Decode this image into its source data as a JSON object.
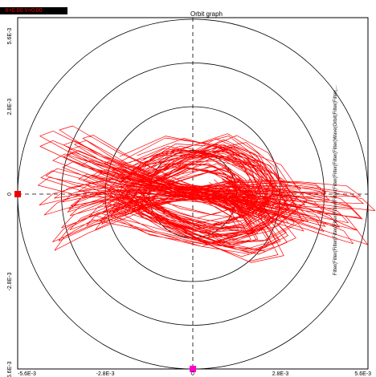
{
  "readout": "X=0.00  Y=0.00",
  "side_label": "Filter(Filter(Filter(Filter(Filter(Filter(Filter(Filter(Filter(Filter(Filter(Wave(Orbit(Filter(Filter(...",
  "chart_data": {
    "type": "line",
    "title": "Orbit graph",
    "xlabel": "",
    "ylabel": "",
    "xlim": [
      -0.0056,
      0.0056
    ],
    "ylim": [
      -0.0056,
      0.0056
    ],
    "x_ticks": [
      "-5.6E-3",
      "-2.8E-3",
      "0",
      "2.8E-3",
      "5.6E-3"
    ],
    "y_ticks": [
      "5.6E-3",
      "2.8E-3",
      "0",
      "-2.8E-3",
      "-5.6E-3"
    ],
    "circle_radii": [
      0.0014,
      0.0028,
      0.0042,
      0.0056
    ],
    "grid": "dashed crosshair through origin",
    "series": [
      {
        "color": "#ff0000",
        "x": [
          -0.0022,
          -0.0008,
          0.0012,
          0.0026,
          0.0034,
          0.0024,
          0.0004,
          -0.0016,
          -0.0032,
          -0.0042,
          -0.0046,
          -0.0034,
          -0.0012,
          0.0014,
          0.0036,
          0.0052,
          0.0056,
          0.0042,
          0.0018,
          -0.0006,
          -0.0028,
          -0.0044,
          -0.0048,
          -0.0034,
          -0.0012,
          0.001,
          0.0024,
          0.003,
          0.002,
          0.0004,
          -0.0014,
          -0.0026,
          -0.002,
          -0.0004,
          0.0012,
          0.0022,
          0.0028,
          0.0024,
          0.0012
        ],
        "y": [
          0.0008,
          0.0016,
          0.0014,
          0.0008,
          -0.0004,
          -0.0012,
          -0.0016,
          -0.0008,
          -0.0002,
          -0.0006,
          -0.001,
          -0.0006,
          -0.0001,
          0.0002,
          0.0,
          -0.0004,
          -0.0008,
          -0.0006,
          -0.0002,
          0.0002,
          0.0008,
          0.0014,
          0.0012,
          0.0006,
          0.0002,
          -0.0002,
          -0.0008,
          -0.0016,
          -0.002,
          -0.0016,
          -0.001,
          -0.0002,
          0.0006,
          0.0012,
          0.0018,
          0.0012,
          0.0002,
          -0.0006,
          0.0004
        ]
      }
    ],
    "markers": [
      {
        "x": -0.0056,
        "y": 0,
        "color": "#ee0000"
      },
      {
        "x": 0,
        "y": -0.0056,
        "color": "#ff00cc"
      }
    ]
  }
}
